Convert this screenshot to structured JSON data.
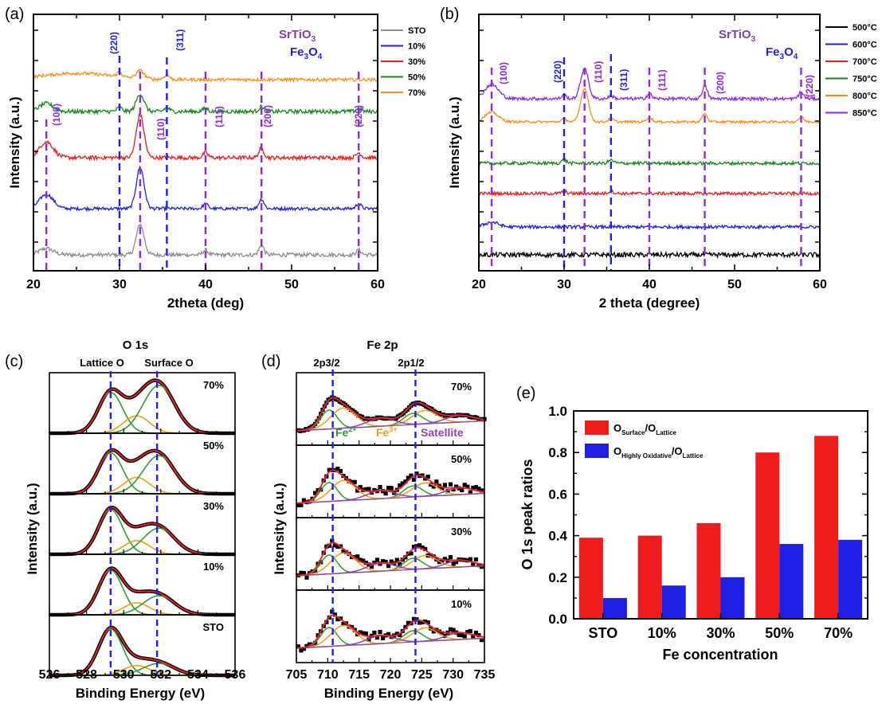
{
  "colors": {
    "black": "#000000",
    "blue": "#1f1fe6",
    "red": "#ee1c1c",
    "green": "#17861a",
    "orange": "#ff8c1a",
    "purple": "#8a2be2",
    "gray": "#8c8c8c",
    "fitred": "#e8232a",
    "fitgreen": "#2e9e2e",
    "fitorange": "#f39c12",
    "fitpurple": "#8e44ad",
    "srtio3": "#7b3fb5"
  },
  "panel_a": {
    "tag": "(a)",
    "ylabel": "Intensity (a.u.)",
    "xlabel": "2theta (deg)",
    "xticks": [
      "20",
      "30",
      "40",
      "50",
      "60"
    ],
    "phase1": "SrTiO",
    "phase1_sub": "3",
    "phase2": "Fe",
    "phase2_sub1": "3",
    "phase2_mid": "O",
    "phase2_sub2": "4",
    "legend": [
      "STO",
      "10%",
      "30%",
      "50%",
      "70%"
    ],
    "labels_fe": [
      "(220)",
      "(311)"
    ],
    "labels_sto": [
      "(100)",
      "(110)",
      "(111)",
      "(200)",
      "(220)"
    ]
  },
  "panel_b": {
    "tag": "(b)",
    "ylabel": "Intensity (a.u.)",
    "xlabel": "2 theta (degree)",
    "xticks": [
      "20",
      "30",
      "40",
      "50",
      "60"
    ],
    "phase1": "SrTiO",
    "phase1_sub": "3",
    "phase2": "Fe",
    "phase2_sub1": "3",
    "phase2_mid": "O",
    "phase2_sub2": "4",
    "legend": [
      "500°C",
      "600°C",
      "700°C",
      "750°C",
      "800°C",
      "850°C"
    ],
    "labels_fe": [
      "(220)",
      "(311)"
    ],
    "labels_sto": [
      "(100)",
      "(110)",
      "(111)",
      "(200)",
      "(220)"
    ]
  },
  "panel_c": {
    "tag": "(c)",
    "title": "O 1s",
    "peak1": "Lattice O",
    "peak2": "Surface O",
    "ylabel": "Intensity (a.u.)",
    "xlabel": "Binding Energy (eV)",
    "xticks": [
      "526",
      "528",
      "530",
      "532",
      "534",
      "536"
    ],
    "rows": [
      "70%",
      "50%",
      "30%",
      "10%",
      "STO"
    ]
  },
  "panel_d": {
    "tag": "(d)",
    "title": "Fe 2p",
    "peak1": "2p3/2",
    "peak2": "2p1/2",
    "ylabel": "Intensity (a.u.)",
    "xlabel": "Binding Energy (eV)",
    "xticks": [
      "705",
      "710",
      "715",
      "720",
      "725",
      "730",
      "735"
    ],
    "rows": [
      "70%",
      "50%",
      "30%",
      "10%"
    ],
    "fe2": "Fe",
    "fe2_sup": "2+",
    "fe3": "Fe",
    "fe3_sup": "3+",
    "sat": "Satellite"
  },
  "chart_data": [
    {
      "type": "line",
      "panel": "a",
      "xlabel": "2theta (deg)",
      "ylabel": "Intensity (a.u.)",
      "xlim": [
        20,
        60
      ],
      "series": [
        {
          "name": "STO"
        },
        {
          "name": "10%"
        },
        {
          "name": "30%"
        },
        {
          "name": "50%"
        },
        {
          "name": "70%"
        }
      ],
      "sto_peaks_2theta": [
        21.5,
        32.4,
        40.0,
        46.5,
        57.8
      ],
      "fe3o4_peaks_2theta": [
        30.0,
        35.5
      ]
    },
    {
      "type": "line",
      "panel": "b",
      "xlabel": "2 theta (degree)",
      "ylabel": "Intensity (a.u.)",
      "xlim": [
        20,
        60
      ],
      "series": [
        {
          "name": "500°C"
        },
        {
          "name": "600°C"
        },
        {
          "name": "700°C"
        },
        {
          "name": "750°C"
        },
        {
          "name": "800°C"
        },
        {
          "name": "850°C"
        }
      ],
      "sto_peaks_2theta": [
        21.5,
        32.4,
        40.0,
        46.5,
        57.8
      ],
      "fe3o4_peaks_2theta": [
        30.0,
        35.5
      ]
    },
    {
      "type": "line",
      "panel": "c",
      "title": "O 1s",
      "xlabel": "Binding Energy (eV)",
      "ylabel": "Intensity (a.u.)",
      "xlim": [
        526,
        536
      ],
      "peak_positions_eV": [
        529.3,
        531.8
      ],
      "rows": [
        {
          "name": "70%",
          "lattice": 0.75,
          "mid": 0.32,
          "surface": 0.88
        },
        {
          "name": "50%",
          "lattice": 0.75,
          "mid": 0.3,
          "surface": 0.7
        },
        {
          "name": "30%",
          "lattice": 0.82,
          "mid": 0.25,
          "surface": 0.48
        },
        {
          "name": "10%",
          "lattice": 0.82,
          "mid": 0.22,
          "surface": 0.35
        },
        {
          "name": "STO",
          "lattice": 0.85,
          "mid": 0.18,
          "surface": 0.22
        }
      ]
    },
    {
      "type": "line",
      "panel": "d",
      "title": "Fe 2p",
      "xlabel": "Binding Energy (eV)",
      "ylabel": "Intensity (a.u.)",
      "xlim": [
        705,
        735
      ],
      "peak_positions_eV": [
        710.8,
        724.0
      ],
      "rows": [
        {
          "name": "70%"
        },
        {
          "name": "50%"
        },
        {
          "name": "30%"
        },
        {
          "name": "10%"
        }
      ]
    },
    {
      "type": "bar",
      "panel": "e",
      "xlabel": "Fe concentration",
      "ylabel": "O 1s peak ratios",
      "ylim": [
        0,
        1.0
      ],
      "yticks": [
        "0.0",
        "0.2",
        "0.4",
        "0.6",
        "0.8",
        "1.0"
      ],
      "categories": [
        "STO",
        "10%",
        "30%",
        "50%",
        "70%"
      ],
      "series": [
        {
          "name": "O_Surface/O_Lattice",
          "label_main": "O",
          "label_sub1": "Surface",
          "label_sep": "/O",
          "label_sub2": "Lattice",
          "values": [
            0.39,
            0.4,
            0.46,
            0.8,
            0.88
          ]
        },
        {
          "name": "O_Highly Oxidative/O_Lattice",
          "label_main": "O",
          "label_sub1": "Highly Oxidative",
          "label_sep": "/O",
          "label_sub2": "Lattice",
          "values": [
            0.1,
            0.16,
            0.2,
            0.36,
            0.38
          ]
        }
      ],
      "tag": "(e)"
    }
  ]
}
